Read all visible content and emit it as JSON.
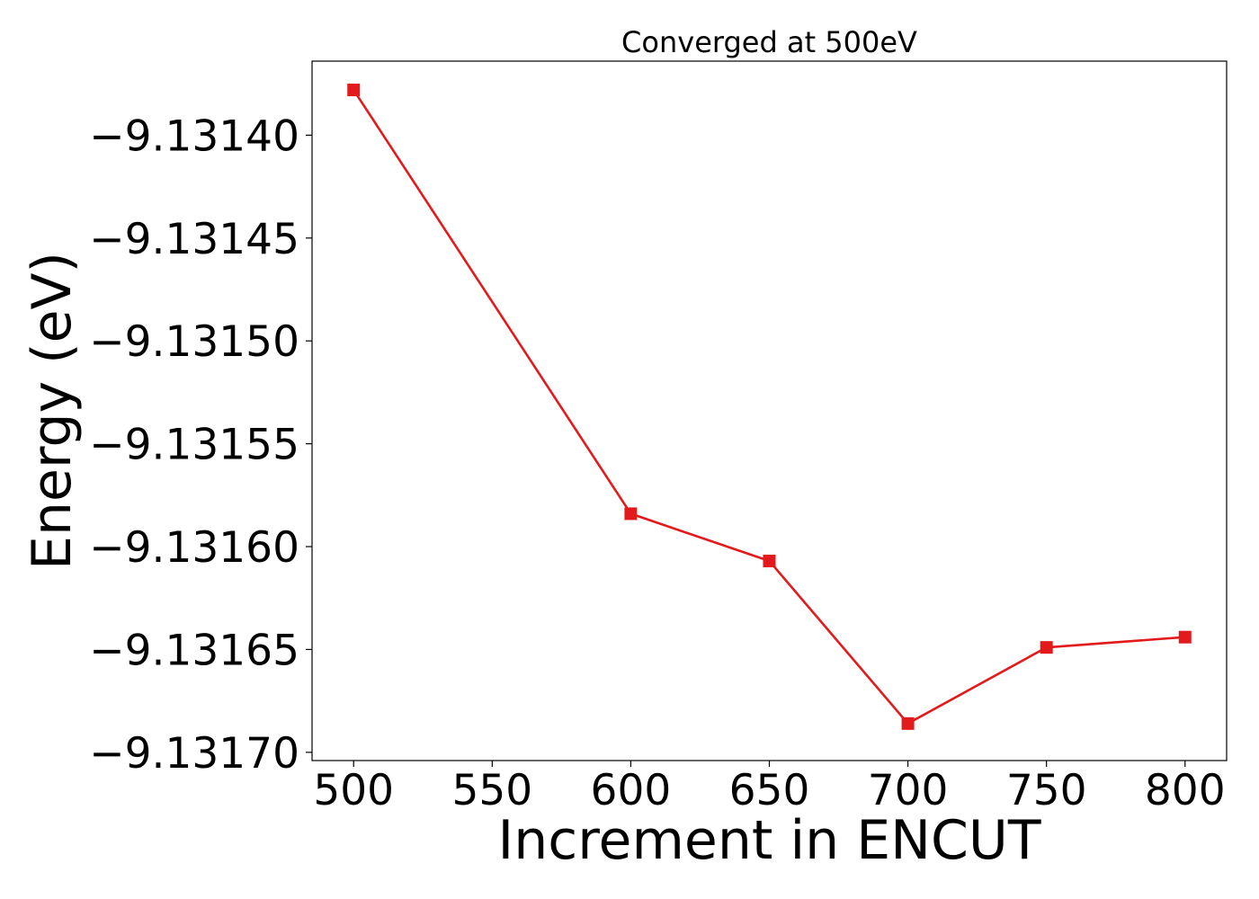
{
  "chart_data": {
    "type": "line",
    "title": "Converged at 500eV",
    "xlabel": "Increment in ENCUT",
    "ylabel": "Energy (eV)",
    "xlim": [
      485,
      815
    ],
    "ylim": [
      -9.131704,
      -9.131364
    ],
    "x_ticks": [
      500,
      550,
      600,
      650,
      700,
      750,
      800
    ],
    "x_tick_labels": [
      "500",
      "550",
      "600",
      "650",
      "700",
      "750",
      "800"
    ],
    "y_ticks": [
      -9.1314,
      -9.13145,
      -9.1315,
      -9.13155,
      -9.1316,
      -9.13165,
      -9.1317
    ],
    "y_tick_labels": [
      "−9.13140",
      "−9.13145",
      "−9.13150",
      "−9.13155",
      "−9.13160",
      "−9.13165",
      "−9.13170"
    ],
    "grid": false,
    "series": [
      {
        "color": "#e31a1c",
        "marker": "square",
        "x": [
          500,
          600,
          650,
          700,
          750,
          800
        ],
        "y": [
          -9.131378,
          -9.131584,
          -9.131607,
          -9.131686,
          -9.131649,
          -9.131644
        ]
      }
    ]
  }
}
